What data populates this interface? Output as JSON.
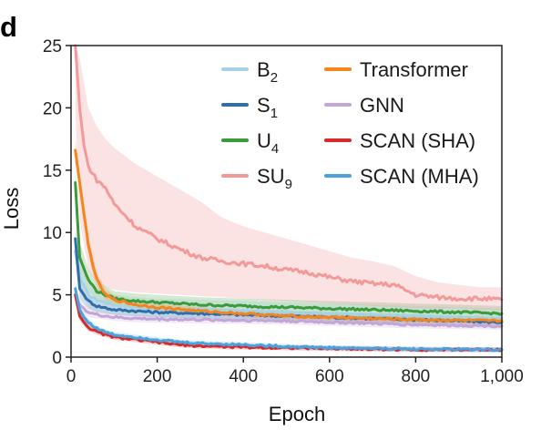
{
  "panel_label": "d",
  "chart_data": {
    "type": "line",
    "xlabel": "Epoch",
    "ylabel": "Loss",
    "xlim": [
      0,
      1000
    ],
    "ylim": [
      0,
      25
    ],
    "xticks": [
      0,
      200,
      400,
      600,
      800,
      1000
    ],
    "xtick_labels": [
      "0",
      "200",
      "400",
      "600",
      "800",
      "1,000"
    ],
    "yticks": [
      0,
      5,
      10,
      15,
      20,
      25
    ],
    "ytick_labels": [
      "0",
      "5",
      "10",
      "15",
      "20",
      "25"
    ],
    "grid": false,
    "legend": "top-right, two columns",
    "series": [
      {
        "name": "B",
        "name_sub": "2",
        "color": "#a6d3e3",
        "x": [
          10,
          20,
          40,
          60,
          100,
          150,
          200,
          300,
          400,
          500,
          600,
          700,
          800,
          900,
          1000
        ],
        "y": [
          8.5,
          6.5,
          5.0,
          4.6,
          4.2,
          4.0,
          3.9,
          3.8,
          3.7,
          3.6,
          3.5,
          3.4,
          3.3,
          3.2,
          3.1
        ],
        "band": [
          1.2,
          1.2,
          1.0,
          0.9,
          0.8,
          0.8,
          0.8,
          0.8,
          0.8,
          0.8,
          0.8,
          0.8,
          0.8,
          0.8,
          0.8
        ]
      },
      {
        "name": "S",
        "name_sub": "1",
        "color": "#2e6fa8",
        "x": [
          10,
          20,
          40,
          60,
          100,
          150,
          200,
          300,
          400,
          500,
          600,
          700,
          800,
          900,
          1000
        ],
        "y": [
          9.5,
          5.5,
          4.5,
          4.1,
          3.8,
          3.7,
          3.6,
          3.5,
          3.4,
          3.3,
          3.2,
          3.1,
          3.0,
          2.9,
          2.8
        ],
        "band": [
          1.0,
          0.8,
          0.6,
          0.5,
          0.4,
          0.4,
          0.4,
          0.4,
          0.4,
          0.4,
          0.4,
          0.4,
          0.4,
          0.4,
          0.4
        ]
      },
      {
        "name": "U",
        "name_sub": "4",
        "color": "#3b9a3b",
        "x": [
          10,
          20,
          40,
          60,
          100,
          150,
          200,
          300,
          400,
          500,
          600,
          700,
          800,
          900,
          1000
        ],
        "y": [
          14.0,
          8.0,
          6.2,
          5.3,
          4.7,
          4.5,
          4.4,
          4.2,
          4.1,
          4.0,
          3.9,
          3.8,
          3.7,
          3.6,
          3.5
        ],
        "band": [
          1.5,
          1.2,
          0.9,
          0.8,
          0.6,
          0.6,
          0.6,
          0.6,
          0.6,
          0.6,
          0.6,
          0.6,
          0.6,
          0.6,
          0.6
        ]
      },
      {
        "name": "SU",
        "name_sub": "9",
        "color": "#f29a9a",
        "x": [
          10,
          20,
          30,
          40,
          60,
          80,
          100,
          150,
          200,
          250,
          300,
          350,
          400,
          450,
          500,
          550,
          600,
          650,
          700,
          750,
          800,
          850,
          900,
          950,
          1000
        ],
        "y": [
          25.0,
          20.0,
          17.0,
          15.3,
          14.2,
          13.6,
          12.3,
          10.5,
          9.5,
          8.7,
          8.0,
          7.7,
          7.5,
          7.3,
          7.0,
          6.8,
          6.4,
          6.1,
          5.9,
          5.8,
          5.0,
          4.8,
          4.7,
          4.7,
          4.6
        ],
        "band_low": [
          20.0,
          11.0,
          9.0,
          7.0,
          6.0,
          5.6,
          5.4,
          5.2,
          5.1,
          5.0,
          4.9,
          4.8,
          4.7,
          4.6,
          4.5,
          4.4,
          4.3,
          4.2,
          4.1,
          4.0,
          3.9,
          3.9,
          3.9,
          3.8,
          3.8
        ],
        "band_high": [
          25.0,
          24.0,
          22.0,
          20.0,
          18.5,
          17.5,
          16.8,
          15.5,
          14.5,
          13.5,
          12.5,
          11.2,
          10.5,
          10.0,
          9.5,
          9.0,
          8.5,
          8.0,
          7.7,
          7.3,
          6.5,
          6.0,
          5.8,
          5.6,
          5.6
        ]
      },
      {
        "name": "Transformer",
        "color": "#f5841f",
        "x": [
          10,
          20,
          30,
          40,
          50,
          60,
          80,
          100,
          150,
          200,
          300,
          400,
          500,
          600,
          700,
          800,
          900,
          1000
        ],
        "y": [
          16.6,
          14.0,
          11.5,
          9.0,
          7.5,
          6.2,
          5.0,
          4.6,
          4.2,
          4.0,
          3.7,
          3.5,
          3.3,
          3.2,
          3.1,
          3.0,
          2.95,
          2.9
        ],
        "band": [
          1.0,
          0.8,
          0.8,
          0.8,
          0.7,
          0.6,
          0.5,
          0.4,
          0.3,
          0.3,
          0.3,
          0.3,
          0.3,
          0.3,
          0.3,
          0.3,
          0.3,
          0.3
        ]
      },
      {
        "name": "GNN",
        "color": "#c3a5d8",
        "x": [
          10,
          20,
          40,
          60,
          100,
          150,
          200,
          300,
          400,
          500,
          600,
          700,
          800,
          900,
          1000
        ],
        "y": [
          5.0,
          4.2,
          3.6,
          3.4,
          3.2,
          3.1,
          3.05,
          3.0,
          2.95,
          2.9,
          2.8,
          2.7,
          2.6,
          2.55,
          2.5
        ],
        "band": [
          0.6,
          0.5,
          0.4,
          0.3,
          0.3,
          0.3,
          0.3,
          0.3,
          0.3,
          0.3,
          0.3,
          0.3,
          0.3,
          0.3,
          0.3
        ]
      },
      {
        "name": "SCAN (SHA)",
        "color": "#d42a2a",
        "x": [
          10,
          20,
          30,
          40,
          60,
          80,
          100,
          150,
          200,
          250,
          300,
          400,
          500,
          600,
          700,
          800,
          900,
          1000
        ],
        "y": [
          5.0,
          3.3,
          2.8,
          2.4,
          2.0,
          1.8,
          1.6,
          1.4,
          1.2,
          1.0,
          0.9,
          0.8,
          0.75,
          0.7,
          0.65,
          0.6,
          0.6,
          0.6
        ],
        "band": [
          0.6,
          0.4,
          0.3,
          0.3,
          0.2,
          0.2,
          0.2,
          0.2,
          0.2,
          0.2,
          0.2,
          0.2,
          0.2,
          0.2,
          0.2,
          0.2,
          0.2,
          0.2
        ]
      },
      {
        "name": "SCAN (MHA)",
        "color": "#4aa3df",
        "x": [
          10,
          20,
          30,
          40,
          60,
          80,
          100,
          150,
          200,
          250,
          300,
          400,
          500,
          600,
          700,
          800,
          900,
          1000
        ],
        "y": [
          5.5,
          3.8,
          3.2,
          2.8,
          2.3,
          2.0,
          1.8,
          1.6,
          1.4,
          1.2,
          1.1,
          1.0,
          0.85,
          0.75,
          0.7,
          0.65,
          0.62,
          0.6
        ],
        "band": [
          0.6,
          0.4,
          0.3,
          0.3,
          0.2,
          0.2,
          0.2,
          0.2,
          0.2,
          0.2,
          0.2,
          0.2,
          0.2,
          0.2,
          0.2,
          0.2,
          0.2,
          0.2
        ]
      }
    ]
  }
}
